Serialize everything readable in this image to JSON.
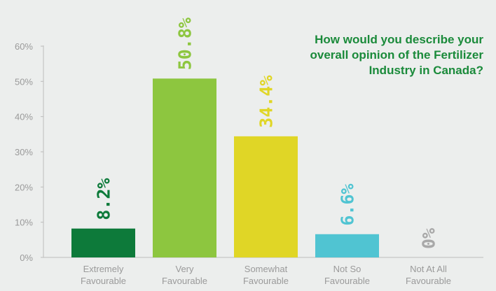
{
  "chart_data": {
    "type": "bar",
    "title": "How would you describe your overall opinion of the Fertilizer Industry in Canada?",
    "categories": [
      [
        "Extremely",
        "Favourable"
      ],
      [
        "Very",
        "Favourable"
      ],
      [
        "Somewhat",
        "Favourable"
      ],
      [
        "Not So",
        "Favourable"
      ],
      [
        "Not At All",
        "Favourable"
      ]
    ],
    "values": [
      8.2,
      50.8,
      34.4,
      6.6,
      0
    ],
    "data_labels": [
      "8.2%",
      "50.8%",
      "34.4%",
      "6.6%",
      "0%"
    ],
    "colors": [
      "#0d7a3a",
      "#8dc63f",
      "#e0d626",
      "#50c4d2",
      "#a8a8a8"
    ],
    "yticks": [
      "0%",
      "10%",
      "20%",
      "30%",
      "40%",
      "50%",
      "60%"
    ],
    "ylim": [
      0,
      60
    ],
    "grid": false,
    "xlabel": "",
    "ylabel": ""
  }
}
